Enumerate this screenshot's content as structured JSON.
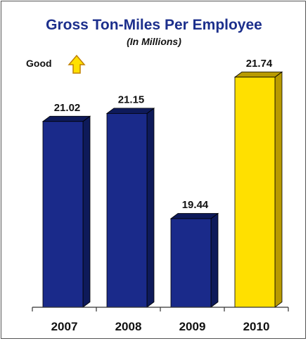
{
  "chart_data": {
    "type": "bar",
    "title": "Gross Ton-Miles Per Employee",
    "subtitle": "(In Millions)",
    "categories": [
      "2007",
      "2008",
      "2009",
      "2010"
    ],
    "values": [
      21.02,
      21.15,
      19.44,
      21.74
    ],
    "value_labels": [
      "21.02",
      "21.15",
      "19.44",
      "21.74"
    ],
    "ylim": [
      18.0,
      22.0
    ],
    "grid": false,
    "legend": "none",
    "annotation": {
      "label": "Good",
      "icon": "up-arrow-icon"
    },
    "colors": {
      "default_bar": "#1a2a8a",
      "default_bar_side": "#0e1a5a",
      "highlight_bar": "#ffe000",
      "highlight_bar_side": "#b89a00",
      "title": "#1c2f8c"
    },
    "highlight_index": 3
  }
}
